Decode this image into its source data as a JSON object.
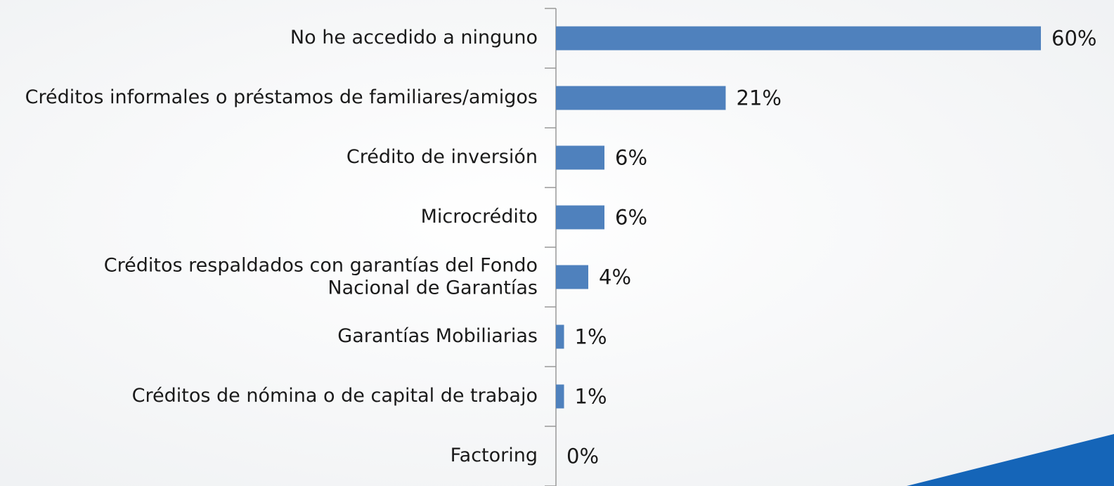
{
  "chart_data": {
    "type": "bar",
    "orientation": "horizontal",
    "categories": [
      "No he accedido a ninguno",
      "Créditos informales o préstamos de familiares/amigos",
      "Crédito de inversión",
      "Microcrédito",
      "Créditos respaldados con garantías del Fondo\nNacional de Garantías",
      "Garantías Mobiliarias",
      "Créditos de nómina o de capital de trabajo",
      "Factoring"
    ],
    "values": [
      60,
      21,
      6,
      6,
      4,
      1,
      1,
      0
    ],
    "value_labels": [
      "60%",
      "21%",
      "6%",
      "6%",
      "4%",
      "1%",
      "1%",
      "0%"
    ],
    "color": "#4f81bd"
  }
}
